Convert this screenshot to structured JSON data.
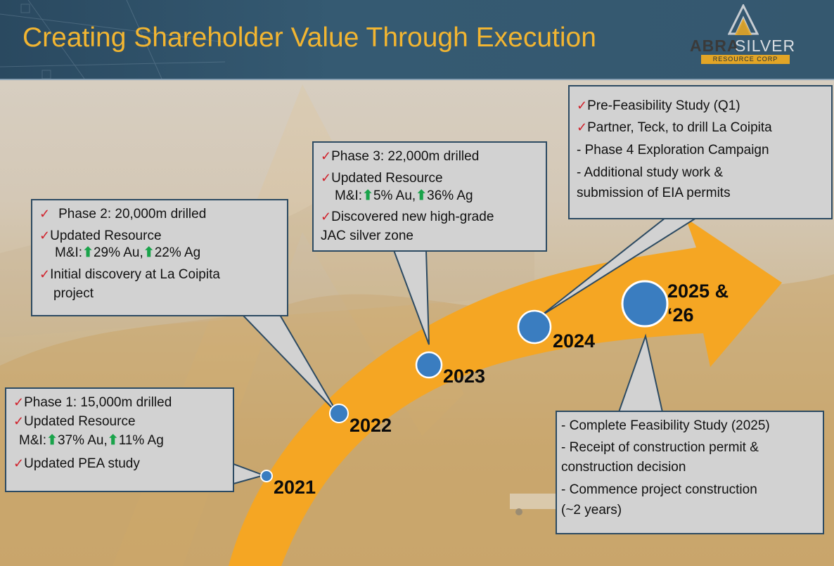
{
  "title": "Creating Shareholder Value Through Execution",
  "logo": {
    "part1": "ABRA",
    "part2": "SILVER",
    "tagline": "RESOURCE CORP"
  },
  "colors": {
    "title": "#f2b531",
    "arrow": "#f5a623",
    "box_border": "#2c4a62",
    "milestone": "#3a7dc0",
    "check": "#d0202a",
    "up_arrow": "#19a34a"
  },
  "milestones": {
    "y2021": "2021",
    "y2022": "2022",
    "y2023": "2023",
    "y2024": "2024",
    "y2025a": "2025 &",
    "y2025b": "‘26"
  },
  "boxes": {
    "phase1": {
      "line1": "Phase 1: 15,000m drilled",
      "line2": "Updated Resource",
      "line3_prefix": "M&I:",
      "line3_a": "37% Au,",
      "line3_b": "11% Ag",
      "line4": "Updated PEA study"
    },
    "phase2": {
      "line1": "Phase 2: 20,000m drilled",
      "line2": "Updated Resource",
      "line3_prefix": "M&I:",
      "line3_a": "29% Au,",
      "line3_b": "22% Ag",
      "line4": "Initial discovery at La Coipita",
      "line5": "project"
    },
    "phase3": {
      "line1": "Phase 3:  22,000m drilled",
      "line2": "Updated Resource",
      "line3_prefix": "M&I:",
      "line3_a": "5% Au,",
      "line3_b": "36% Ag",
      "line4": "Discovered new high-grade",
      "line5": "JAC silver zone"
    },
    "y2024": {
      "line1": "Pre-Feasibility Study (Q1)",
      "line2": "Partner, Teck, to drill La Coipita",
      "line3": "- Phase 4 Exploration Campaign",
      "line4": "- Additional study work &",
      "line5": "submission of EIA permits"
    },
    "y2025": {
      "line1": "- Complete Feasibility Study (2025)",
      "line2": "- Receipt of construction permit &",
      "line3": "construction decision",
      "line4": "- Commence project construction",
      "line5": "(~2 years)"
    }
  },
  "icons": {
    "check": "✓",
    "up": "⬆"
  }
}
